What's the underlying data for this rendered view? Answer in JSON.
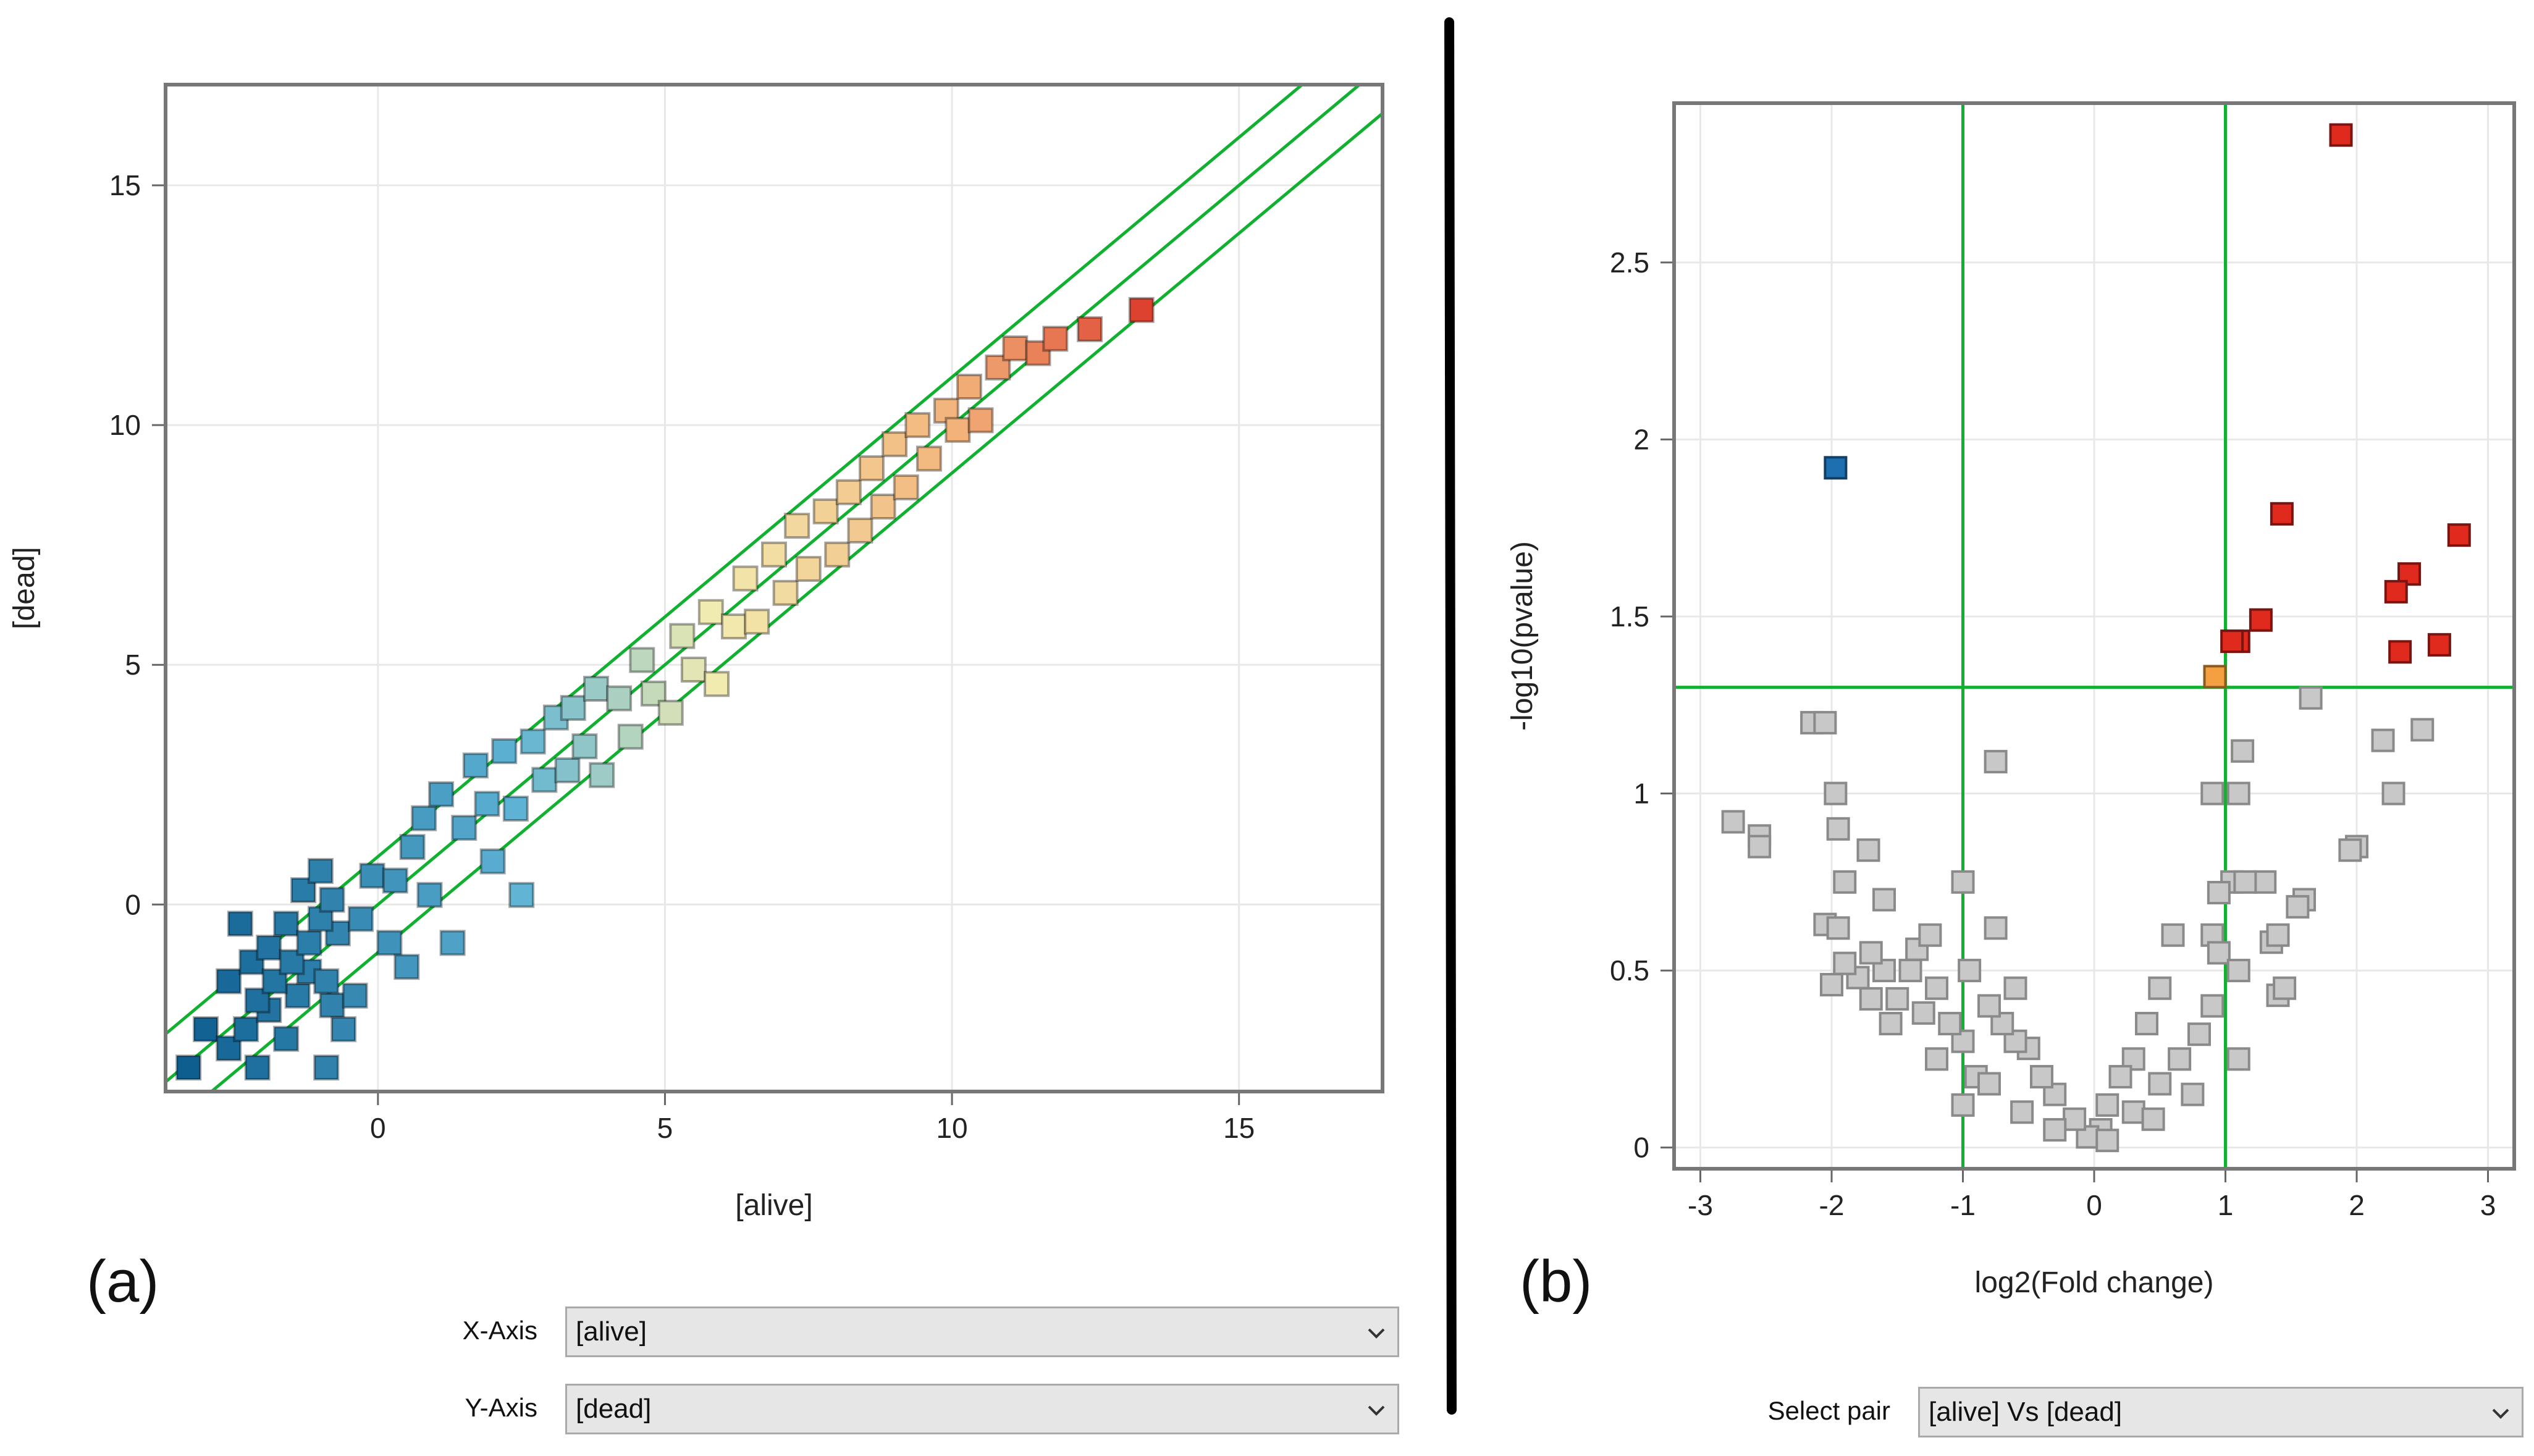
{
  "panels": {
    "a_label": "(a)",
    "b_label": "(b)"
  },
  "controls": {
    "x_axis_label": "X-Axis",
    "x_axis_value": "[alive]",
    "y_axis_label": "Y-Axis",
    "y_axis_value": "[dead]",
    "pair_label": "Select pair",
    "pair_value": "[alive] Vs [dead]"
  },
  "colors": {
    "guide_line": "#10b030",
    "plot_border": "#777777",
    "grid": "#e8e8e8",
    "scatter_low": "#0b5c8e",
    "scatter_mid": "#f2ecb0",
    "scatter_high": "#dc3a2a",
    "volcano_up": "#e02a1e",
    "volcano_down": "#1e6fb0",
    "volcano_border": "#f5a040",
    "volcano_ns": "#c8c8c8"
  },
  "chart_data": [
    {
      "type": "scatter",
      "title": "",
      "xlabel": "[alive]",
      "ylabel": "[dead]",
      "xlim": [
        -3.7,
        17.5
      ],
      "ylim": [
        -3.9,
        17.1
      ],
      "xticks": [
        0,
        5,
        10,
        15
      ],
      "yticks": [
        0,
        5,
        10,
        15
      ],
      "grid": true,
      "color_scale": "low-blue to high-red",
      "reference_lines": [
        {
          "name": "upper",
          "slope": 1,
          "intercept": 1
        },
        {
          "name": "identity",
          "slope": 1,
          "intercept": 0
        },
        {
          "name": "lower",
          "slope": 1,
          "intercept": -1
        }
      ],
      "points": [
        [
          -3.3,
          -3.4
        ],
        [
          -3.0,
          -2.6
        ],
        [
          -2.6,
          -3.0
        ],
        [
          -2.3,
          -2.6
        ],
        [
          -2.1,
          -3.4
        ],
        [
          -1.9,
          -2.2
        ],
        [
          -1.6,
          -2.8
        ],
        [
          -1.4,
          -1.9
        ],
        [
          -1.2,
          -1.4
        ],
        [
          -0.9,
          -3.4
        ],
        [
          -0.8,
          -2.1
        ],
        [
          -0.6,
          -2.6
        ],
        [
          -2.6,
          -1.6
        ],
        [
          -2.2,
          -1.2
        ],
        [
          -1.9,
          -0.9
        ],
        [
          -1.6,
          -0.4
        ],
        [
          -1.3,
          0.3
        ],
        [
          -1.0,
          0.7
        ],
        [
          -0.9,
          -1.6
        ],
        [
          -0.7,
          -0.6
        ],
        [
          -0.4,
          -1.9
        ],
        [
          -2.4,
          -0.4
        ],
        [
          -2.1,
          -2.0
        ],
        [
          -1.8,
          -1.6
        ],
        [
          -1.5,
          -1.2
        ],
        [
          -1.2,
          -0.8
        ],
        [
          -1.0,
          -0.3
        ],
        [
          -0.8,
          0.1
        ],
        [
          -0.3,
          -0.3
        ],
        [
          -0.1,
          0.6
        ],
        [
          0.2,
          -0.8
        ],
        [
          0.3,
          0.5
        ],
        [
          0.5,
          -1.3
        ],
        [
          0.6,
          1.2
        ],
        [
          0.8,
          1.8
        ],
        [
          0.9,
          0.2
        ],
        [
          1.1,
          2.3
        ],
        [
          1.3,
          -0.8
        ],
        [
          1.5,
          1.6
        ],
        [
          1.7,
          2.9
        ],
        [
          1.9,
          2.1
        ],
        [
          2.0,
          0.9
        ],
        [
          2.2,
          3.2
        ],
        [
          2.4,
          2.0
        ],
        [
          2.5,
          0.2
        ],
        [
          2.7,
          3.4
        ],
        [
          2.9,
          2.6
        ],
        [
          3.1,
          3.9
        ],
        [
          3.3,
          2.8
        ],
        [
          3.4,
          4.1
        ],
        [
          3.6,
          3.3
        ],
        [
          3.8,
          4.5
        ],
        [
          3.9,
          2.7
        ],
        [
          4.2,
          4.3
        ],
        [
          4.4,
          3.5
        ],
        [
          4.6,
          5.1
        ],
        [
          4.8,
          4.4
        ],
        [
          5.1,
          4.0
        ],
        [
          5.3,
          5.6
        ],
        [
          5.5,
          4.9
        ],
        [
          5.8,
          6.1
        ],
        [
          5.9,
          4.6
        ],
        [
          6.2,
          5.8
        ],
        [
          6.4,
          6.8
        ],
        [
          6.6,
          5.9
        ],
        [
          6.9,
          7.3
        ],
        [
          7.1,
          6.5
        ],
        [
          7.3,
          7.9
        ],
        [
          7.5,
          7.0
        ],
        [
          7.8,
          8.2
        ],
        [
          8.0,
          7.3
        ],
        [
          8.2,
          8.6
        ],
        [
          8.4,
          7.8
        ],
        [
          8.6,
          9.1
        ],
        [
          8.8,
          8.3
        ],
        [
          9.0,
          9.6
        ],
        [
          9.2,
          8.7
        ],
        [
          9.4,
          10.0
        ],
        [
          9.6,
          9.3
        ],
        [
          9.9,
          10.3
        ],
        [
          10.1,
          9.9
        ],
        [
          10.3,
          10.8
        ],
        [
          10.5,
          10.1
        ],
        [
          10.8,
          11.2
        ],
        [
          11.1,
          11.6
        ],
        [
          11.5,
          11.5
        ],
        [
          11.8,
          11.8
        ],
        [
          12.4,
          12.0
        ],
        [
          13.3,
          12.4
        ]
      ]
    },
    {
      "type": "scatter",
      "title": "",
      "xlabel": "log2(Fold change)",
      "ylabel": "-log10(pvalue)",
      "xlim": [
        -3.2,
        3.2
      ],
      "ylim": [
        -0.06,
        2.95
      ],
      "xticks": [
        -3,
        -2,
        -1,
        0,
        1,
        2,
        3
      ],
      "yticks": [
        0,
        0.5,
        1,
        1.5,
        2,
        2.5
      ],
      "ytick_labels": [
        "0",
        "0.5",
        "1",
        "1.5",
        "2",
        "2.5"
      ],
      "grid": true,
      "thresholds": {
        "fold_change": [
          -1,
          1
        ],
        "pvalue": 1.3
      },
      "significant_up": [
        [
          1.88,
          2.86
        ],
        [
          1.43,
          1.79
        ],
        [
          2.78,
          1.73
        ],
        [
          2.4,
          1.62
        ],
        [
          2.3,
          1.57
        ],
        [
          1.27,
          1.49
        ],
        [
          1.1,
          1.43
        ],
        [
          1.05,
          1.43
        ],
        [
          2.63,
          1.42
        ],
        [
          2.33,
          1.4
        ]
      ],
      "significant_down": [
        [
          -1.97,
          1.92
        ]
      ],
      "borderline": [
        [
          0.92,
          1.33
        ]
      ],
      "not_significant": [
        [
          -2.75,
          0.92
        ],
        [
          -2.55,
          0.88
        ],
        [
          -2.55,
          0.85
        ],
        [
          -2.15,
          1.2
        ],
        [
          -2.05,
          1.2
        ],
        [
          -1.97,
          1.0
        ],
        [
          -1.95,
          0.9
        ],
        [
          -1.9,
          0.75
        ],
        [
          -1.72,
          0.84
        ],
        [
          -1.6,
          0.7
        ],
        [
          -2.05,
          0.63
        ],
        [
          -1.95,
          0.62
        ],
        [
          -1.0,
          0.75
        ],
        [
          -0.75,
          1.09
        ],
        [
          -0.75,
          0.62
        ],
        [
          -0.6,
          0.45
        ],
        [
          1.65,
          1.27
        ],
        [
          1.13,
          1.12
        ],
        [
          0.9,
          1.0
        ],
        [
          1.1,
          1.0
        ],
        [
          2.2,
          1.15
        ],
        [
          2.5,
          1.18
        ],
        [
          2.28,
          1.0
        ],
        [
          1.3,
          0.75
        ],
        [
          1.05,
          0.75
        ],
        [
          0.95,
          0.72
        ],
        [
          1.15,
          0.75
        ],
        [
          1.35,
          0.58
        ],
        [
          1.4,
          0.6
        ],
        [
          1.6,
          0.7
        ],
        [
          1.55,
          0.68
        ],
        [
          2.0,
          0.85
        ],
        [
          1.95,
          0.84
        ],
        [
          0.9,
          0.6
        ],
        [
          0.95,
          0.55
        ],
        [
          1.1,
          0.5
        ],
        [
          1.4,
          0.43
        ],
        [
          1.45,
          0.45
        ],
        [
          1.1,
          0.25
        ],
        [
          0.9,
          0.4
        ],
        [
          0.6,
          0.6
        ],
        [
          0.5,
          0.45
        ],
        [
          0.4,
          0.35
        ],
        [
          0.3,
          0.25
        ],
        [
          0.2,
          0.2
        ],
        [
          0.1,
          0.12
        ],
        [
          0.05,
          0.05
        ],
        [
          -0.05,
          0.03
        ],
        [
          -0.15,
          0.08
        ],
        [
          -0.3,
          0.15
        ],
        [
          -0.4,
          0.2
        ],
        [
          -0.5,
          0.28
        ],
        [
          -0.6,
          0.3
        ],
        [
          -0.7,
          0.35
        ],
        [
          -0.8,
          0.4
        ],
        [
          -0.9,
          0.2
        ],
        [
          -1.0,
          0.3
        ],
        [
          -1.1,
          0.35
        ],
        [
          -1.2,
          0.45
        ],
        [
          -1.3,
          0.38
        ],
        [
          -1.4,
          0.5
        ],
        [
          -1.5,
          0.42
        ],
        [
          -1.6,
          0.5
        ],
        [
          -1.7,
          0.55
        ],
        [
          -1.8,
          0.48
        ],
        [
          -1.9,
          0.52
        ],
        [
          -2.0,
          0.46
        ],
        [
          -1.35,
          0.56
        ],
        [
          -1.2,
          0.25
        ],
        [
          -1.0,
          0.12
        ],
        [
          -0.8,
          0.18
        ],
        [
          -0.55,
          0.1
        ],
        [
          -0.3,
          0.05
        ],
        [
          0.1,
          0.02
        ],
        [
          0.3,
          0.1
        ],
        [
          0.5,
          0.18
        ],
        [
          0.65,
          0.25
        ],
        [
          0.8,
          0.32
        ],
        [
          0.75,
          0.15
        ],
        [
          0.45,
          0.08
        ],
        [
          -1.55,
          0.35
        ],
        [
          -1.25,
          0.6
        ],
        [
          -1.7,
          0.42
        ],
        [
          -0.95,
          0.5
        ]
      ]
    }
  ]
}
